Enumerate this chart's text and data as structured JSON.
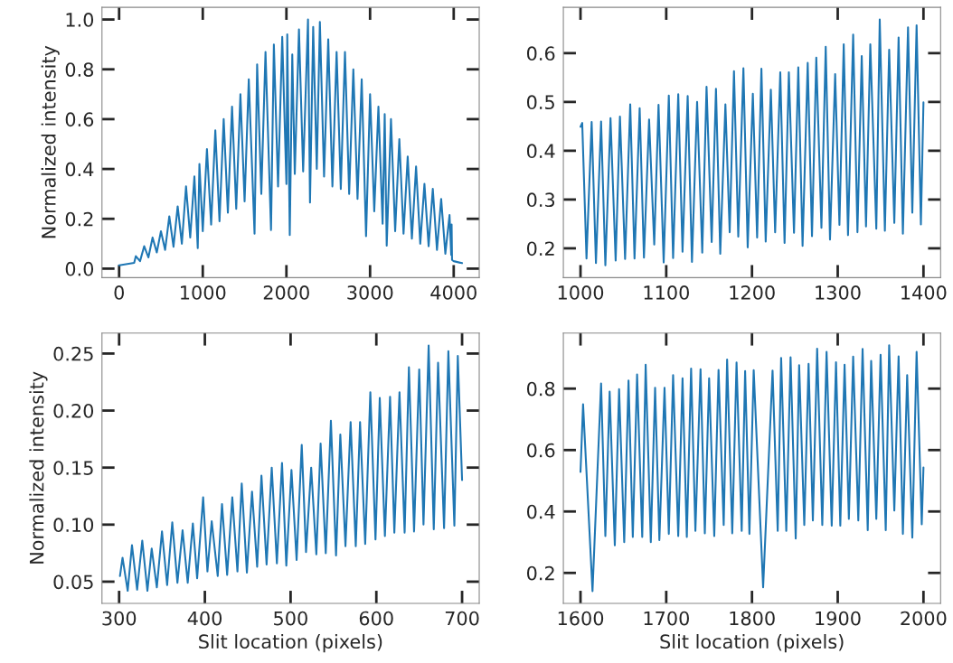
{
  "chart_data": [
    {
      "type": "line",
      "ylabel": "Normalized intensity",
      "xlim": [
        -205,
        4305
      ],
      "ylim": [
        -0.036,
        1.049
      ],
      "xticks": [
        0,
        1000,
        2000,
        3000,
        4000
      ],
      "yticks": [
        {
          "value": 0.0,
          "label": "0.0"
        },
        0.2,
        0.4,
        0.6,
        0.8,
        {
          "value": 1.0,
          "label": "1.0"
        }
      ],
      "x": [
        0,
        180,
        200,
        250,
        300,
        350,
        400,
        450,
        500,
        550,
        600,
        650,
        700,
        750,
        800,
        850,
        900,
        940,
        960,
        1000,
        1050,
        1100,
        1150,
        1200,
        1250,
        1300,
        1350,
        1400,
        1450,
        1500,
        1550,
        1619,
        1650,
        1700,
        1750,
        1816,
        1850,
        1900,
        1950,
        2000,
        2010,
        2040,
        2070,
        2100,
        2150,
        2200,
        2258,
        2282,
        2320,
        2363,
        2400,
        2450,
        2500,
        2550,
        2600,
        2650,
        2700,
        2750,
        2800,
        2850,
        2900,
        2952,
        3000,
        3050,
        3100,
        3150,
        3175,
        3199,
        3250,
        3300,
        3350,
        3400,
        3450,
        3500,
        3550,
        3600,
        3650,
        3700,
        3750,
        3800,
        3850,
        3900,
        3950,
        3970,
        3975,
        3980,
        4000,
        4100
      ],
      "series": [
        {
          "color": "#1f77b4",
          "values": [
            0.013,
            0.023,
            0.05,
            0.03,
            0.09,
            0.045,
            0.125,
            0.065,
            0.15,
            0.075,
            0.21,
            0.088,
            0.25,
            0.1,
            0.33,
            0.125,
            0.37,
            0.082,
            0.42,
            0.15,
            0.48,
            0.177,
            0.555,
            0.19,
            0.6,
            0.225,
            0.65,
            0.24,
            0.7,
            0.27,
            0.76,
            0.14,
            0.82,
            0.3,
            0.87,
            0.155,
            0.9,
            0.33,
            0.93,
            0.34,
            0.94,
            0.135,
            0.86,
            0.38,
            0.96,
            0.39,
            1.0,
            0.265,
            0.97,
            0.4,
            0.99,
            0.37,
            0.92,
            0.33,
            0.87,
            0.32,
            0.87,
            0.3,
            0.8,
            0.28,
            0.76,
            0.13,
            0.7,
            0.23,
            0.65,
            0.18,
            0.62,
            0.092,
            0.6,
            0.15,
            0.52,
            0.14,
            0.45,
            0.12,
            0.41,
            0.1,
            0.34,
            0.09,
            0.32,
            0.075,
            0.28,
            0.06,
            0.215,
            0.055,
            0.177,
            0.035,
            0.03,
            0.022
          ]
        }
      ]
    },
    {
      "type": "line",
      "xlim": [
        980,
        1420
      ],
      "ylim": [
        0.14,
        0.694
      ],
      "xticks": [
        1000,
        1100,
        1200,
        1300,
        1400
      ],
      "yticks": [
        0.2,
        0.3,
        0.4,
        0.5,
        0.6
      ],
      "x": [
        1000,
        1002,
        1007,
        1013,
        1018,
        1024,
        1029,
        1035,
        1041,
        1046,
        1052,
        1058,
        1063,
        1069,
        1074,
        1080,
        1086,
        1091,
        1097,
        1103,
        1108,
        1114,
        1119,
        1125,
        1130,
        1136,
        1142,
        1147,
        1153,
        1158,
        1163,
        1169,
        1174,
        1179,
        1184,
        1190,
        1195,
        1201,
        1206,
        1211,
        1216,
        1222,
        1227,
        1233,
        1238,
        1243,
        1249,
        1254,
        1259,
        1265,
        1270,
        1275,
        1281,
        1286,
        1291,
        1297,
        1302,
        1307,
        1312,
        1318,
        1323,
        1328,
        1333,
        1338,
        1345,
        1349,
        1355,
        1360,
        1366,
        1371,
        1376,
        1382,
        1387,
        1392,
        1397,
        1400
      ],
      "series": [
        {
          "color": "#1f77b4",
          "values": [
            0.449,
            0.457,
            0.179,
            0.459,
            0.17,
            0.46,
            0.165,
            0.467,
            0.175,
            0.47,
            0.178,
            0.495,
            0.179,
            0.487,
            0.181,
            0.464,
            0.208,
            0.494,
            0.171,
            0.513,
            0.18,
            0.516,
            0.193,
            0.512,
            0.172,
            0.5,
            0.191,
            0.531,
            0.213,
            0.527,
            0.189,
            0.495,
            0.233,
            0.563,
            0.224,
            0.569,
            0.202,
            0.517,
            0.222,
            0.568,
            0.214,
            0.525,
            0.233,
            0.561,
            0.211,
            0.561,
            0.232,
            0.571,
            0.205,
            0.58,
            0.225,
            0.591,
            0.242,
            0.613,
            0.218,
            0.557,
            0.248,
            0.618,
            0.227,
            0.638,
            0.233,
            0.594,
            0.245,
            0.618,
            0.24,
            0.669,
            0.236,
            0.607,
            0.252,
            0.632,
            0.23,
            0.653,
            0.273,
            0.657,
            0.249,
            0.499
          ]
        }
      ]
    },
    {
      "type": "line",
      "xlabel": "Slit location (pixels)",
      "ylabel": "Normalized intensity",
      "xlim": [
        280,
        720
      ],
      "ylim": [
        0.031,
        0.268
      ],
      "xticks": [
        300,
        400,
        500,
        600,
        700
      ],
      "yticks": [
        0.05,
        {
          "value": 0.1,
          "label": "0.10"
        },
        0.15,
        {
          "value": 0.2,
          "label": "0.20"
        },
        0.25
      ],
      "x": [
        301,
        304,
        310,
        315,
        321,
        327,
        333,
        338,
        344,
        350,
        356,
        362,
        368,
        374,
        380,
        386,
        391,
        398,
        403,
        408,
        415,
        420,
        426,
        432,
        438,
        443,
        449,
        455,
        461,
        466,
        472,
        478,
        484,
        490,
        495,
        501,
        507,
        513,
        518,
        524,
        530,
        535,
        541,
        547,
        553,
        558,
        564,
        570,
        576,
        581,
        587,
        593,
        599,
        604,
        610,
        616,
        621,
        627,
        633,
        638,
        644,
        650,
        655,
        661,
        667,
        672,
        679,
        684,
        691,
        695,
        700
      ],
      "series": [
        {
          "color": "#1f77b4",
          "values": [
            0.055,
            0.071,
            0.042,
            0.082,
            0.043,
            0.086,
            0.042,
            0.079,
            0.045,
            0.094,
            0.047,
            0.102,
            0.049,
            0.095,
            0.049,
            0.101,
            0.053,
            0.124,
            0.059,
            0.103,
            0.055,
            0.118,
            0.056,
            0.124,
            0.059,
            0.136,
            0.058,
            0.129,
            0.063,
            0.143,
            0.065,
            0.15,
            0.066,
            0.154,
            0.064,
            0.148,
            0.069,
            0.17,
            0.076,
            0.15,
            0.074,
            0.171,
            0.075,
            0.191,
            0.073,
            0.179,
            0.081,
            0.19,
            0.081,
            0.19,
            0.083,
            0.216,
            0.087,
            0.211,
            0.09,
            0.212,
            0.093,
            0.216,
            0.093,
            0.238,
            0.094,
            0.236,
            0.1,
            0.257,
            0.096,
            0.242,
            0.097,
            0.252,
            0.099,
            0.248,
            0.139
          ]
        }
      ]
    },
    {
      "type": "line",
      "xlabel": "Slit location (pixels)",
      "xlim": [
        1580,
        2020
      ],
      "ylim": [
        0.101,
        0.981
      ],
      "xticks": [
        1600,
        1700,
        1800,
        1900,
        2000
      ],
      "yticks": [
        0.2,
        0.4,
        0.6,
        0.8
      ],
      "x": [
        1600,
        1603,
        1614,
        1624,
        1629,
        1634,
        1640,
        1645,
        1651,
        1656,
        1661,
        1666,
        1672,
        1676,
        1682,
        1687,
        1692,
        1698,
        1703,
        1708,
        1714,
        1719,
        1724,
        1729,
        1734,
        1740,
        1745,
        1750,
        1756,
        1761,
        1767,
        1771,
        1777,
        1782,
        1788,
        1792,
        1797,
        1802,
        1813,
        1824,
        1830,
        1834,
        1840,
        1845,
        1851,
        1855,
        1861,
        1866,
        1871,
        1876,
        1882,
        1887,
        1893,
        1898,
        1903,
        1908,
        1913,
        1918,
        1924,
        1929,
        1935,
        1939,
        1945,
        1950,
        1956,
        1960,
        1966,
        1971,
        1976,
        1981,
        1987,
        1992,
        1998,
        2000
      ],
      "series": [
        {
          "color": "#1f77b4",
          "values": [
            0.529,
            0.749,
            0.141,
            0.817,
            0.32,
            0.79,
            0.29,
            0.798,
            0.3,
            0.826,
            0.317,
            0.846,
            0.317,
            0.878,
            0.3,
            0.803,
            0.307,
            0.803,
            0.327,
            0.844,
            0.32,
            0.834,
            0.317,
            0.865,
            0.337,
            0.863,
            0.329,
            0.834,
            0.32,
            0.861,
            0.356,
            0.895,
            0.329,
            0.885,
            0.337,
            0.857,
            0.327,
            0.86,
            0.153,
            0.859,
            0.337,
            0.9,
            0.337,
            0.902,
            0.312,
            0.876,
            0.356,
            0.881,
            0.371,
            0.93,
            0.356,
            0.92,
            0.354,
            0.886,
            0.354,
            0.878,
            0.376,
            0.904,
            0.371,
            0.929,
            0.339,
            0.89,
            0.376,
            0.91,
            0.339,
            0.941,
            0.403,
            0.905,
            0.327,
            0.844,
            0.315,
            0.92,
            0.358,
            0.543
          ]
        }
      ]
    }
  ]
}
